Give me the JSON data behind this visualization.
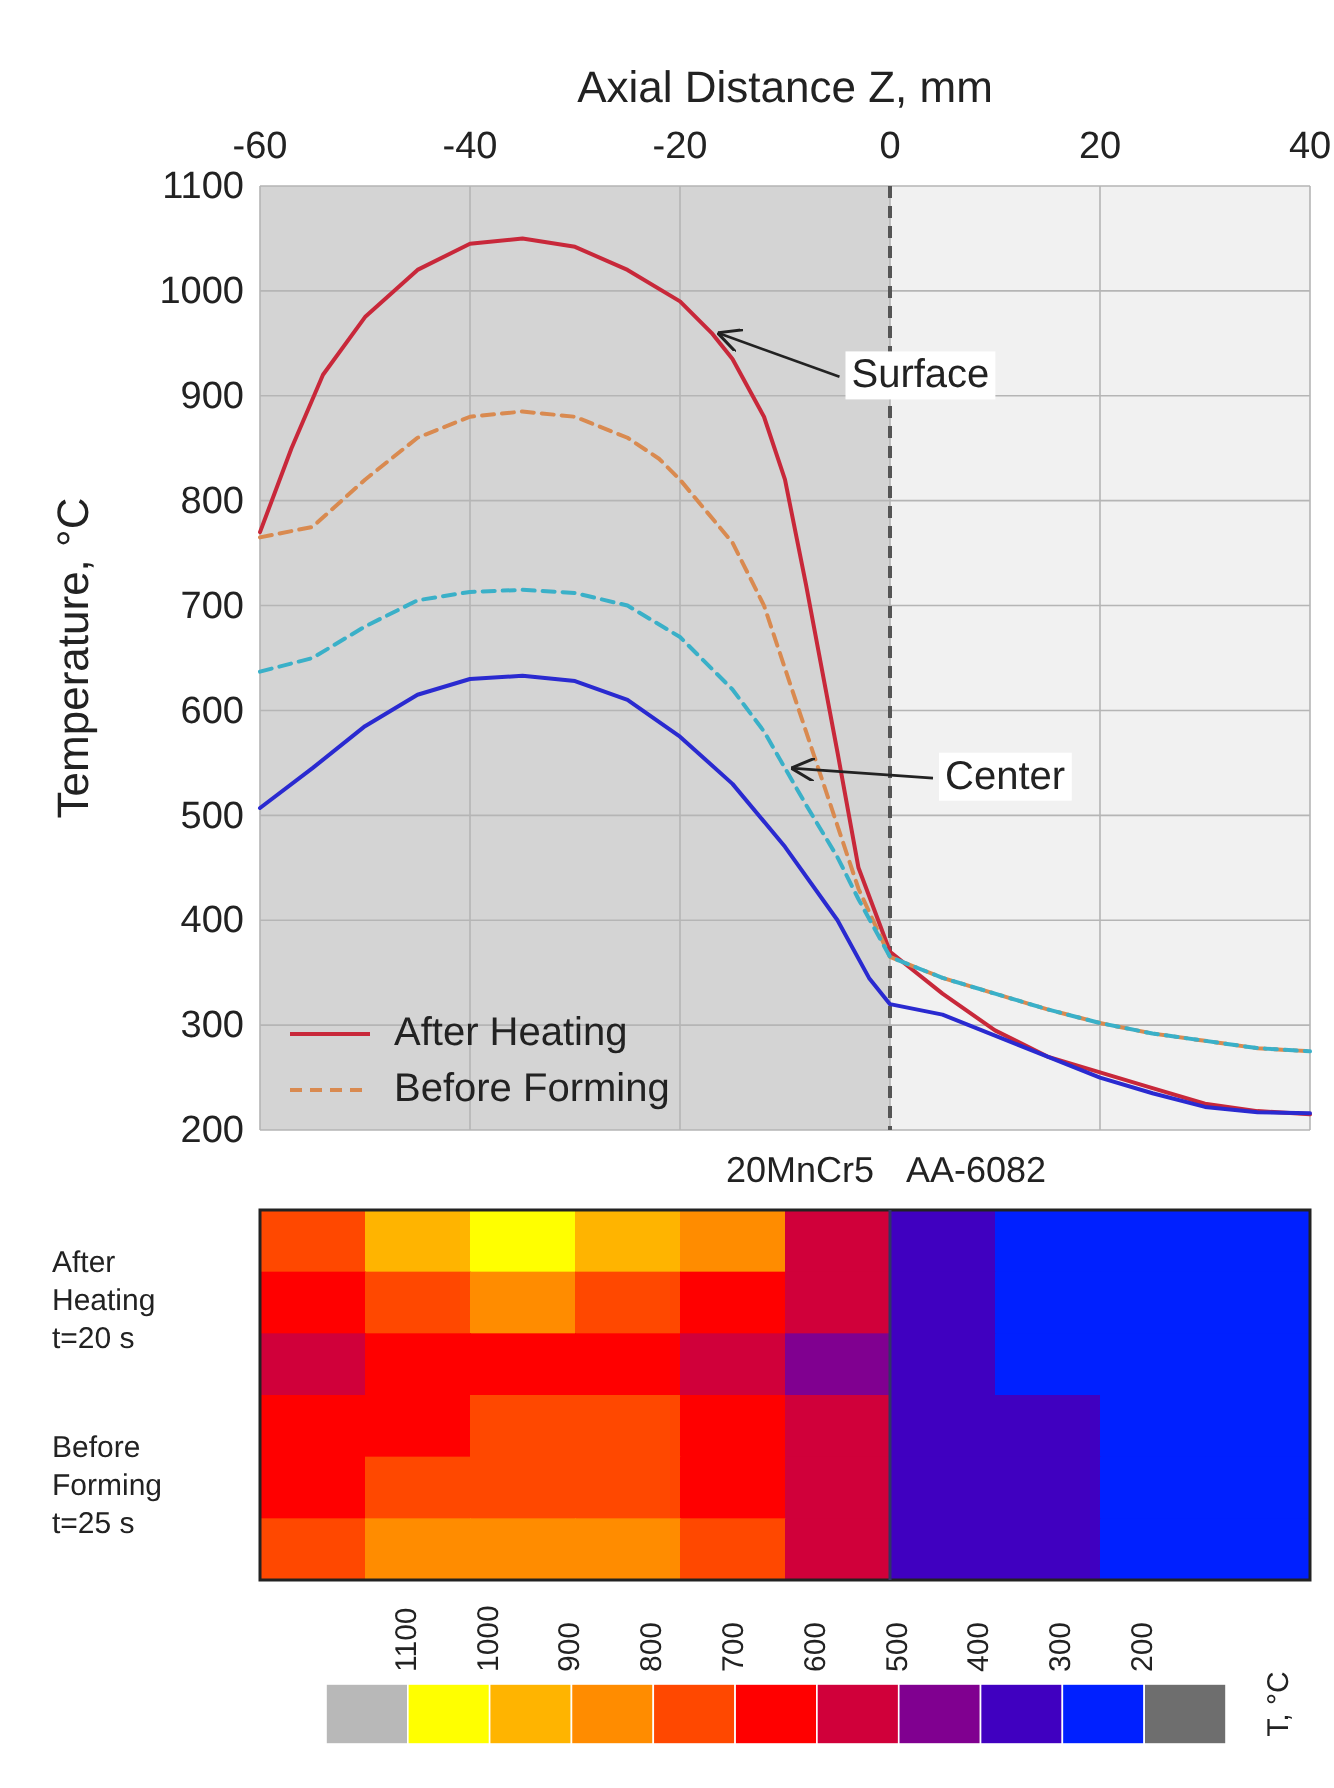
{
  "chart_data": [
    {
      "type": "line",
      "xlabel": "Axial Distance Z, mm",
      "ylabel": "Temperature, °C",
      "xlim": [
        -60,
        40
      ],
      "xticks": [
        -60,
        -40,
        -20,
        0,
        20,
        40
      ],
      "ylim": [
        200,
        1100
      ],
      "yticks": [
        200,
        300,
        400,
        500,
        600,
        700,
        800,
        900,
        1000,
        1100
      ],
      "grid": true,
      "legend": "bottom left",
      "bands": [
        {
          "axis": "x",
          "from": -60,
          "to": 0,
          "color": "#d4d4d4"
        },
        {
          "axis": "x",
          "from": 0,
          "to": 40,
          "color": "#f1f1f1"
        }
      ],
      "ref_lines": [
        {
          "axis": "x",
          "value": 0,
          "color": "#555555",
          "line_style": "dashed"
        }
      ],
      "annotations": [
        {
          "text": "Surface",
          "x": -17,
          "y": 960
        },
        {
          "text": "Center",
          "x": -10,
          "y": 545
        }
      ],
      "series": [
        {
          "name": "After Heating",
          "color": "#c8283a",
          "line_style": "solid",
          "x": [
            -60,
            -57,
            -54,
            -50,
            -45,
            -40,
            -35,
            -30,
            -25,
            -20,
            -17,
            -15,
            -12,
            -10,
            -8,
            -5,
            -3,
            0,
            5,
            10,
            15,
            20,
            25,
            30,
            35,
            40
          ],
          "values": [
            770,
            850,
            920,
            975,
            1020,
            1045,
            1050,
            1042,
            1020,
            990,
            960,
            935,
            880,
            820,
            720,
            560,
            450,
            370,
            330,
            295,
            270,
            255,
            240,
            225,
            218,
            215
          ]
        },
        {
          "name": "Before Forming",
          "color": "#d98a50",
          "line_style": "dashed",
          "x": [
            -60,
            -55,
            -50,
            -45,
            -40,
            -35,
            -30,
            -25,
            -22,
            -20,
            -15,
            -12,
            -10,
            -8,
            -5,
            -3,
            0,
            5,
            10,
            15,
            20,
            25,
            30,
            35,
            40
          ],
          "values": [
            765,
            775,
            820,
            860,
            880,
            885,
            880,
            860,
            840,
            820,
            760,
            700,
            640,
            580,
            490,
            430,
            365,
            345,
            330,
            315,
            302,
            292,
            285,
            278,
            275
          ]
        },
        {
          "color": "#3ab0c8",
          "line_style": "dashed",
          "x": [
            -60,
            -55,
            -50,
            -45,
            -40,
            -35,
            -30,
            -25,
            -20,
            -15,
            -12,
            -10,
            -8,
            -5,
            -3,
            0,
            5,
            10,
            15,
            20,
            25,
            30,
            35,
            40
          ],
          "values": [
            637,
            650,
            680,
            705,
            713,
            715,
            712,
            700,
            670,
            620,
            580,
            545,
            510,
            460,
            420,
            365,
            345,
            330,
            315,
            302,
            292,
            285,
            278,
            275
          ]
        },
        {
          "color": "#2a2ad0",
          "line_style": "solid",
          "x": [
            -60,
            -55,
            -50,
            -45,
            -40,
            -35,
            -30,
            -25,
            -20,
            -15,
            -10,
            -5,
            -2,
            0,
            5,
            10,
            15,
            20,
            25,
            30,
            35,
            40
          ],
          "values": [
            507,
            545,
            585,
            615,
            630,
            633,
            628,
            610,
            575,
            530,
            470,
            400,
            345,
            320,
            310,
            290,
            270,
            250,
            235,
            222,
            217,
            216
          ]
        }
      ]
    },
    {
      "type": "heatmap",
      "clabel": "T, °C",
      "tick_labels": "y",
      "annotations": [
        "20MnCr5",
        "AA-6082"
      ],
      "categories": [
        null,
        null,
        null,
        null,
        null,
        null,
        null,
        null,
        null,
        null
      ],
      "y_categories": [
        null,
        "After Heating t=20 s",
        null,
        null,
        "Before Forming t=25 s",
        null
      ],
      "clim": [
        1200,
        100
      ],
      "cticks": [
        1100,
        1000,
        900,
        800,
        700,
        600,
        500,
        400,
        300,
        200
      ],
      "colors": [
        "#b8b8b8",
        "#ffff00",
        "#ffb400",
        "#ff8c00",
        "#ff4800",
        "#ff0000",
        "#d0003a",
        "#800090",
        "#4000c0",
        "#0020ff",
        "#6e6e6e"
      ],
      "cells": [
        [
          750,
          950,
          1050,
          950,
          850,
          550,
          350,
          250,
          250,
          250
        ],
        [
          650,
          750,
          850,
          750,
          650,
          550,
          350,
          250,
          250,
          250
        ],
        [
          550,
          650,
          650,
          650,
          550,
          450,
          350,
          250,
          250,
          250
        ],
        [
          650,
          650,
          750,
          750,
          650,
          550,
          350,
          350,
          250,
          250
        ],
        [
          650,
          750,
          750,
          750,
          650,
          550,
          350,
          350,
          250,
          250
        ],
        [
          750,
          850,
          850,
          850,
          750,
          550,
          350,
          350,
          250,
          250
        ]
      ]
    }
  ]
}
